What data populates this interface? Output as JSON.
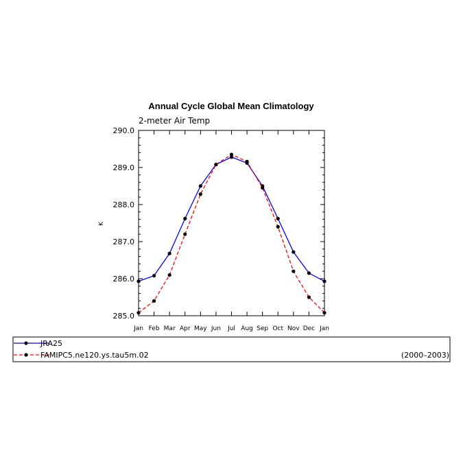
{
  "chart_data": {
    "type": "line",
    "title": "Annual Cycle Global Mean Climatology",
    "subtitle": "2-meter Air Temp",
    "ylabel": "K",
    "xlabel": "",
    "categories": [
      "Jan",
      "Feb",
      "Mar",
      "Apr",
      "May",
      "Jun",
      "Jul",
      "Aug",
      "Sep",
      "Oct",
      "Nov",
      "Dec",
      "Jan"
    ],
    "ylim": [
      285.0,
      290.0
    ],
    "yticks": [
      "285.0",
      "286.0",
      "287.0",
      "288.0",
      "289.0",
      "290.0"
    ],
    "grid": false,
    "legend_placement": "bottom",
    "series": [
      {
        "name": "JRA25",
        "color": "#0000ff",
        "dash": "solid",
        "values": [
          285.93,
          286.08,
          286.68,
          287.62,
          288.5,
          289.08,
          289.28,
          289.12,
          288.5,
          287.62,
          286.72,
          286.15,
          285.93
        ]
      },
      {
        "name": "FAMIPC5.ne120.ys.tau5m.02",
        "color": "#ff0000",
        "dash": "dashed",
        "values": [
          285.08,
          285.4,
          286.1,
          287.2,
          288.28,
          289.08,
          289.35,
          289.16,
          288.45,
          287.4,
          286.2,
          285.5,
          285.08
        ]
      }
    ],
    "period_label": "(2000–2003)"
  }
}
